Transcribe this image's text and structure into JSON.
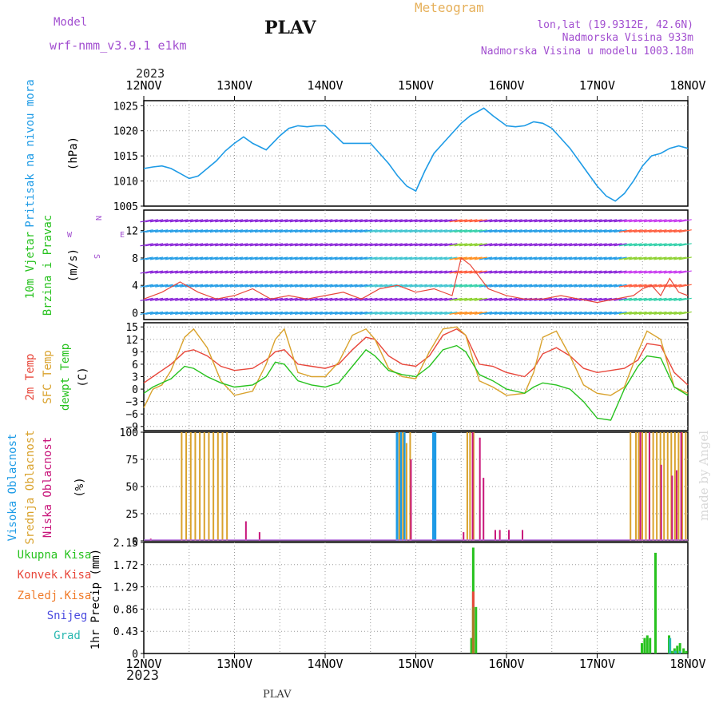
{
  "header": {
    "model_label": "Model",
    "model_name": "wrf-nmm_v3.9.1  e1km",
    "station": "PLAV",
    "meteogram": "Meteogram",
    "lonlat": "lon,lat (19.9312E, 42.6N)",
    "altitude": "Nadmorska Visina 933m",
    "model_altitude": "Nadmorska Visina u modelu 1003.18m",
    "year_top": "2023",
    "year_bottom": "2023",
    "footer_station": "PLAV",
    "credit": "made by Angel"
  },
  "colors": {
    "pressure": "#1e9be6",
    "temp2m": "#e8473b",
    "sfc": "#d9a22c",
    "dewpt": "#27c21e",
    "high_cloud": "#1e9be6",
    "mid_cloud": "#d9a22c",
    "low_cloud": "#c8157a",
    "total_precip": "#27c21e",
    "conv_precip": "#e8473b",
    "strat_precip": "#f07a28",
    "snow": "#4a4adf",
    "hail": "#2ab8b0",
    "label_purple": "#a24fd0",
    "label_orange": "#e6b05a"
  },
  "chart_data": [
    {
      "type": "line",
      "panel": "pressure",
      "x_ticks": [
        "12NOV",
        "13NOV",
        "14NOV",
        "15NOV",
        "16NOV",
        "17NOV",
        "18NOV"
      ],
      "ylabel": [
        "Pritisak na nivou mora",
        "(hPa)"
      ],
      "ylim": [
        1005,
        1026
      ],
      "yticks": [
        "1005",
        "1010",
        "1015",
        "1020",
        "1025"
      ],
      "grid": true,
      "series": [
        {
          "x": [
            0,
            0.1,
            0.2,
            0.3,
            0.4,
            0.5,
            0.6,
            0.7,
            0.8,
            0.9,
            1.0,
            1.1,
            1.2,
            1.35,
            1.5,
            1.6,
            1.7,
            1.8,
            1.9,
            2.0,
            2.2,
            2.4,
            2.5,
            2.6,
            2.7,
            2.8,
            2.9,
            3.0,
            3.1,
            3.2,
            3.35,
            3.5,
            3.6,
            3.7,
            3.75,
            3.85,
            4.0,
            4.1,
            4.2,
            4.3,
            4.4,
            4.5,
            4.6,
            4.7,
            4.8,
            4.9,
            5.0,
            5.1,
            5.2,
            5.3,
            5.4,
            5.5,
            5.6,
            5.7,
            5.8,
            5.9,
            6.0
          ],
          "y": [
            1012.5,
            1012.8,
            1013.0,
            1012.5,
            1011.5,
            1010.5,
            1011.0,
            1012.5,
            1014.0,
            1016.0,
            1017.5,
            1018.8,
            1017.5,
            1016.2,
            1019.0,
            1020.5,
            1021.0,
            1020.8,
            1021.0,
            1021.0,
            1017.5,
            1017.5,
            1017.5,
            1015.5,
            1013.5,
            1011.0,
            1009.0,
            1008.0,
            1012.0,
            1015.5,
            1018.5,
            1021.5,
            1023.0,
            1024.0,
            1024.5,
            1023.0,
            1021.0,
            1020.8,
            1021.0,
            1021.8,
            1021.5,
            1020.5,
            1018.5,
            1016.5,
            1014.0,
            1011.5,
            1009.0,
            1007.0,
            1006.0,
            1007.5,
            1010.0,
            1013.0,
            1015.0,
            1015.5,
            1016.5,
            1017.0,
            1016.5
          ]
        }
      ]
    },
    {
      "type": "line",
      "panel": "wind",
      "ylabel": [
        "10m Vjetar",
        "Brzina i Pravac",
        "(m/s)"
      ],
      "direction_key": [
        "N",
        "E",
        "S",
        "W"
      ],
      "ylim": [
        -1,
        15
      ],
      "yticks": [
        "0",
        "4",
        "8",
        "12"
      ],
      "grid": true,
      "series": [
        {
          "name": "wind speed",
          "x": [
            0,
            0.2,
            0.4,
            0.6,
            0.8,
            1.0,
            1.2,
            1.4,
            1.6,
            1.8,
            2.0,
            2.2,
            2.4,
            2.6,
            2.8,
            3.0,
            3.2,
            3.4,
            3.5,
            3.6,
            3.8,
            4.0,
            4.2,
            4.4,
            4.6,
            4.8,
            5.0,
            5.2,
            5.4,
            5.5,
            5.6,
            5.7,
            5.8,
            5.9,
            6.0
          ],
          "y": [
            2.0,
            3.0,
            4.5,
            3.0,
            2.0,
            2.5,
            3.5,
            2.0,
            2.5,
            2.0,
            2.5,
            3.0,
            2.0,
            3.5,
            4.0,
            3.0,
            3.5,
            2.5,
            8.0,
            7.0,
            3.5,
            2.5,
            2.0,
            2.0,
            2.5,
            2.0,
            1.5,
            2.0,
            2.5,
            3.5,
            4.0,
            2.5,
            5.0,
            3.0,
            2.5
          ]
        }
      ]
    },
    {
      "type": "line",
      "panel": "temperature",
      "ylabel": [
        "2m Temp",
        "SFC Temp",
        "dewpt Temp",
        "(C)"
      ],
      "ylim": [
        -10,
        16
      ],
      "yticks": [
        "15",
        "12",
        "9",
        "6",
        "3",
        "0",
        "−3",
        "−6",
        "−9"
      ],
      "grid": true,
      "series": [
        {
          "name": "2m Temp",
          "x": [
            0,
            0.1,
            0.2,
            0.3,
            0.45,
            0.55,
            0.7,
            0.85,
            1.0,
            1.2,
            1.35,
            1.45,
            1.55,
            1.7,
            1.85,
            2.0,
            2.15,
            2.3,
            2.45,
            2.55,
            2.7,
            2.85,
            3.0,
            3.15,
            3.3,
            3.45,
            3.55,
            3.7,
            3.85,
            4.0,
            4.2,
            4.3,
            4.4,
            4.55,
            4.7,
            4.85,
            5.0,
            5.15,
            5.3,
            5.45,
            5.55,
            5.7,
            5.85,
            6.0
          ],
          "y": [
            1.5,
            3.0,
            4.5,
            6.0,
            9.0,
            9.5,
            8.0,
            5.5,
            4.5,
            5.0,
            7.0,
            9.0,
            9.5,
            6.0,
            5.5,
            5.0,
            6.0,
            9.5,
            12.5,
            12.0,
            8.0,
            6.0,
            5.5,
            8.0,
            13.0,
            14.5,
            13.0,
            6.0,
            5.5,
            4.0,
            3.0,
            5.0,
            8.5,
            10.0,
            8.0,
            5.0,
            4.0,
            4.5,
            5.0,
            7.0,
            11.0,
            10.5,
            4.0,
            1.0
          ]
        },
        {
          "name": "SFC Temp",
          "x": [
            0,
            0.1,
            0.2,
            0.3,
            0.45,
            0.55,
            0.7,
            0.85,
            1.0,
            1.2,
            1.35,
            1.45,
            1.55,
            1.7,
            1.85,
            2.0,
            2.15,
            2.3,
            2.45,
            2.55,
            2.7,
            2.85,
            3.0,
            3.15,
            3.3,
            3.45,
            3.55,
            3.7,
            3.85,
            4.0,
            4.2,
            4.3,
            4.4,
            4.55,
            4.7,
            4.85,
            5.0,
            5.15,
            5.3,
            5.45,
            5.55,
            5.7,
            5.85,
            6.0
          ],
          "y": [
            -4.5,
            0.0,
            1.0,
            4.5,
            12.5,
            14.5,
            10.0,
            2.0,
            -1.5,
            -0.5,
            6.0,
            12.0,
            14.5,
            4.0,
            3.0,
            3.0,
            6.5,
            13.0,
            14.5,
            12.0,
            5.0,
            3.0,
            2.5,
            9.0,
            14.5,
            15.0,
            13.0,
            2.0,
            0.5,
            -1.5,
            -1.0,
            4.0,
            12.5,
            14.0,
            8.0,
            1.0,
            -1.0,
            -1.5,
            0.5,
            9.0,
            14.0,
            12.0,
            0.5,
            -1.0
          ]
        },
        {
          "name": "dewpt Temp",
          "x": [
            0,
            0.1,
            0.2,
            0.3,
            0.45,
            0.55,
            0.7,
            0.85,
            1.0,
            1.2,
            1.35,
            1.45,
            1.55,
            1.7,
            1.85,
            2.0,
            2.15,
            2.3,
            2.45,
            2.55,
            2.7,
            2.85,
            3.0,
            3.15,
            3.3,
            3.45,
            3.55,
            3.7,
            3.85,
            4.0,
            4.2,
            4.3,
            4.4,
            4.55,
            4.7,
            4.85,
            5.0,
            5.15,
            5.3,
            5.45,
            5.55,
            5.7,
            5.85,
            6.0
          ],
          "y": [
            -1.0,
            0.5,
            1.5,
            2.5,
            5.5,
            5.0,
            3.0,
            1.5,
            0.5,
            1.0,
            3.0,
            6.5,
            6.0,
            2.0,
            1.0,
            0.5,
            1.5,
            5.5,
            9.5,
            8.0,
            4.5,
            3.5,
            3.0,
            5.5,
            9.5,
            10.5,
            9.0,
            3.5,
            2.0,
            0.0,
            -1.0,
            0.5,
            1.5,
            1.0,
            0.0,
            -3.0,
            -7.0,
            -7.5,
            0.0,
            5.5,
            8.0,
            7.5,
            0.5,
            -1.5
          ]
        }
      ]
    },
    {
      "type": "bar",
      "panel": "clouds",
      "ylabel": [
        "Visoka Oblacnost",
        "Srednja Oblacnost",
        "Niska Oblacnost",
        "(%)"
      ],
      "ylim": [
        0,
        100
      ],
      "yticks": [
        "100",
        "75",
        "50",
        "25",
        "0"
      ],
      "grid": true,
      "series": [
        {
          "name": "Visoka Oblacnost",
          "x": [
            2.78,
            2.82,
            2.86,
            3.18,
            3.19,
            3.2
          ],
          "values": [
            100,
            100,
            100,
            100,
            100,
            100
          ]
        },
        {
          "name": "Srednja Oblacnost",
          "x": [
            0.4,
            0.45,
            0.5,
            0.55,
            0.6,
            0.65,
            0.7,
            0.75,
            0.8,
            0.85,
            0.9,
            2.8,
            2.84,
            2.88,
            2.92,
            3.55,
            3.58,
            3.62,
            5.35,
            5.41,
            5.44,
            5.48,
            5.52,
            5.56,
            5.6,
            5.64,
            5.68,
            5.72,
            5.76,
            5.8,
            5.84,
            5.88,
            5.92,
            5.96
          ],
          "values": [
            100,
            100,
            100,
            100,
            100,
            100,
            100,
            100,
            100,
            100,
            100,
            100,
            100,
            90,
            100,
            100,
            100,
            100,
            100,
            100,
            100,
            100,
            100,
            100,
            100,
            100,
            100,
            100,
            100,
            100,
            100,
            100,
            100,
            100
          ]
        },
        {
          "name": "Niska Oblacnost",
          "x": [
            0.05,
            1.1,
            1.25,
            2.92,
            3.5,
            3.6,
            3.68,
            3.72,
            3.85,
            3.9,
            4.0,
            4.15,
            5.45,
            5.55,
            5.68,
            5.8,
            5.85,
            5.9
          ],
          "values": [
            2,
            18,
            8,
            75,
            8,
            100,
            95,
            58,
            10,
            10,
            10,
            10,
            100,
            100,
            70,
            60,
            65,
            100
          ]
        }
      ]
    },
    {
      "type": "bar",
      "panel": "precip",
      "ylabel": [
        "1hr Precip (mm)"
      ],
      "legend": [
        "Ukupna Kisa",
        "Konvek.Kisa",
        "Zaledj.Kisa",
        "Snijeg",
        "Grad"
      ],
      "ylim": [
        0,
        2.15
      ],
      "yticks": [
        "2.15",
        "1.72",
        "1.29",
        "0.86",
        "0.43",
        "0"
      ],
      "x_ticks": [
        "12NOV",
        "13NOV",
        "14NOV",
        "15NOV",
        "16NOV",
        "17NOV",
        "18NOV"
      ],
      "grid": true,
      "series": [
        {
          "name": "Ukupna Kisa",
          "x": [
            3.6,
            3.62,
            3.65,
            5.48,
            5.51,
            5.54,
            5.57,
            5.63,
            5.78,
            5.81,
            5.84,
            5.87,
            5.9,
            5.94,
            5.97
          ],
          "values": [
            0.3,
            2.05,
            0.9,
            0.2,
            0.3,
            0.35,
            0.3,
            1.95,
            0.35,
            0.05,
            0.1,
            0.15,
            0.2,
            0.1,
            0.05
          ]
        },
        {
          "name": "Konvek.Kisa",
          "x": [
            3.62
          ],
          "values": [
            1.2
          ]
        },
        {
          "name": "Zaledj.Kisa",
          "x": [
            3.62
          ],
          "values": [
            0.9
          ]
        },
        {
          "name": "Grad",
          "x": [
            5.79,
            5.85,
            5.9
          ],
          "values": [
            0.3,
            0.05,
            0.05
          ]
        }
      ]
    }
  ]
}
